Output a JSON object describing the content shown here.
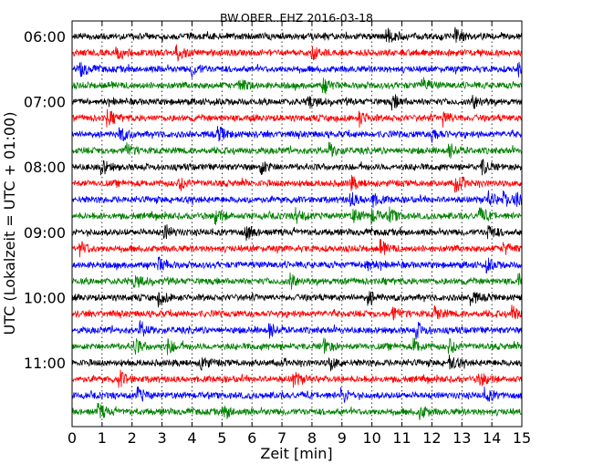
{
  "chart_data": {
    "type": "line",
    "title": "BW.OBER..EHZ 2016-03-18",
    "xlabel": "Zeit  [min]",
    "ylabel": "UTC (Lokalzeit = UTC + 01:00)",
    "xlim": [
      0,
      15
    ],
    "x_ticks": [
      "0",
      "1",
      "2",
      "3",
      "4",
      "5",
      "6",
      "7",
      "8",
      "9",
      "10",
      "11",
      "12",
      "13",
      "14",
      "15"
    ],
    "y_ticks": [
      "06:00",
      "07:00",
      "08:00",
      "09:00",
      "10:00",
      "11:00"
    ],
    "grid": true,
    "trace_interval_min": 15,
    "first_trace_time": "06:00",
    "color_cycle": [
      "#000000",
      "#ff0000",
      "#0000ff",
      "#008000"
    ],
    "series": [
      {
        "start": "06:00",
        "color": "#000000",
        "events_min": [
          10.5,
          12.8
        ]
      },
      {
        "start": "06:15",
        "color": "#ff0000",
        "events_min": [
          1.5,
          3.5,
          8.0
        ]
      },
      {
        "start": "06:30",
        "color": "#0000ff",
        "events_min": [
          0.3,
          4.0,
          14.9
        ]
      },
      {
        "start": "06:45",
        "color": "#008000",
        "events_min": [
          5.6,
          8.4,
          11.7
        ]
      },
      {
        "start": "07:00",
        "color": "#000000",
        "events_min": [
          7.9,
          10.7,
          13.4
        ]
      },
      {
        "start": "07:15",
        "color": "#ff0000",
        "events_min": [
          1.2,
          9.6,
          12.4
        ]
      },
      {
        "start": "07:30",
        "color": "#0000ff",
        "events_min": [
          1.6,
          4.9,
          12.0
        ]
      },
      {
        "start": "07:45",
        "color": "#008000",
        "events_min": [
          1.8,
          8.6,
          12.6
        ]
      },
      {
        "start": "08:00",
        "color": "#000000",
        "events_min": [
          1.0,
          6.3,
          13.7
        ]
      },
      {
        "start": "08:15",
        "color": "#ff0000",
        "events_min": [
          3.6,
          9.3,
          12.8
        ]
      },
      {
        "start": "08:30",
        "color": "#0000ff",
        "events_min": [
          9.3,
          10.0,
          13.9,
          14.4,
          14.8
        ]
      },
      {
        "start": "08:45",
        "color": "#008000",
        "events_min": [
          4.8,
          7.5,
          9.4,
          10.0,
          10.6,
          13.6
        ]
      },
      {
        "start": "09:00",
        "color": "#000000",
        "events_min": [
          3.1,
          5.8,
          13.9
        ]
      },
      {
        "start": "09:15",
        "color": "#ff0000",
        "events_min": [
          0.3,
          10.3,
          14.4
        ]
      },
      {
        "start": "09:30",
        "color": "#0000ff",
        "events_min": [
          2.9,
          9.8,
          13.8
        ]
      },
      {
        "start": "09:45",
        "color": "#008000",
        "events_min": [
          2.1,
          7.3,
          14.9
        ]
      },
      {
        "start": "10:00",
        "color": "#000000",
        "events_min": [
          2.9,
          9.9,
          13.3
        ]
      },
      {
        "start": "10:15",
        "color": "#ff0000",
        "events_min": [
          10.7,
          12.1,
          14.7
        ]
      },
      {
        "start": "10:30",
        "color": "#0000ff",
        "events_min": [
          2.3,
          6.6,
          11.5
        ]
      },
      {
        "start": "10:45",
        "color": "#008000",
        "events_min": [
          2.1,
          3.2,
          8.4,
          11.4,
          12.6
        ]
      },
      {
        "start": "11:00",
        "color": "#000000",
        "events_min": [
          4.3,
          8.6,
          12.6
        ]
      },
      {
        "start": "11:15",
        "color": "#ff0000",
        "events_min": [
          1.6,
          7.4,
          13.6
        ]
      },
      {
        "start": "11:30",
        "color": "#0000ff",
        "events_min": [
          2.2,
          9.0,
          13.8
        ]
      },
      {
        "start": "11:45",
        "color": "#008000",
        "events_min": [
          0.9,
          5.1,
          11.6
        ]
      }
    ]
  }
}
